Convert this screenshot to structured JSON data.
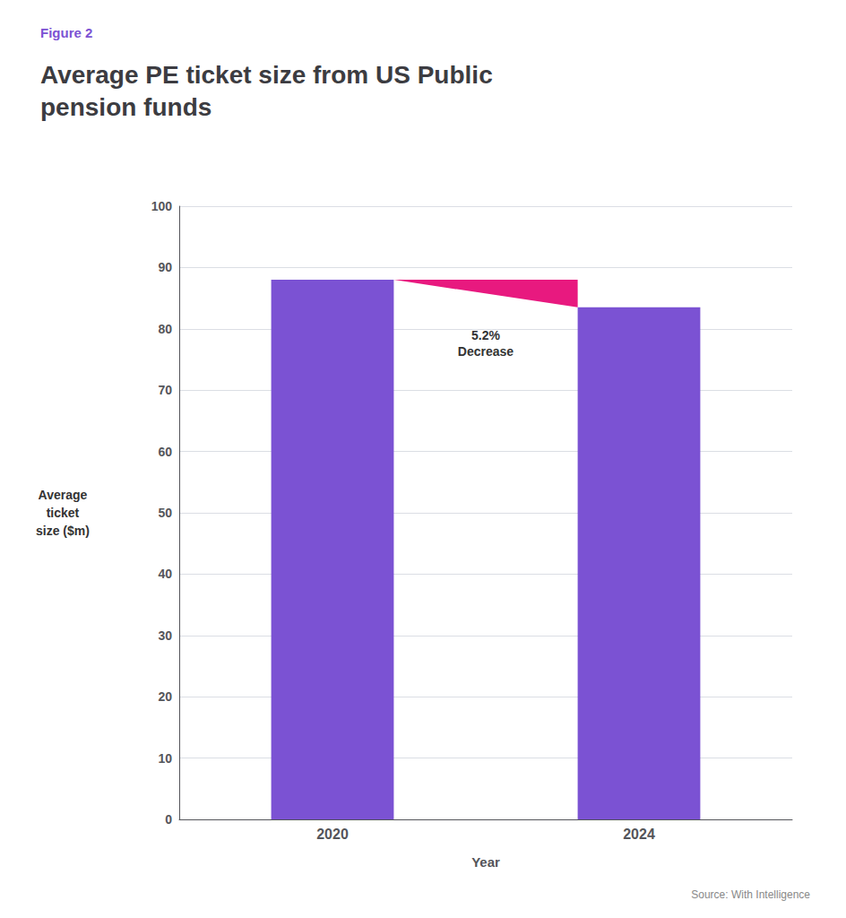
{
  "chart_data": {
    "type": "bar",
    "subtitle": "Figure 2",
    "title": "Average PE ticket size from US Public\npension funds",
    "categories": [
      "2020",
      "2024"
    ],
    "values": [
      88,
      83.5
    ],
    "color": "#7B52D3",
    "xlabel": "Year",
    "ylabel": "Average\nticket\nsize ($m)",
    "ylim": [
      0,
      100
    ],
    "yticks": [
      0,
      10,
      20,
      30,
      40,
      50,
      60,
      70,
      80,
      90,
      100
    ],
    "grid": true,
    "annotations": [
      {
        "text": "5.2%\nDecrease",
        "color": "#E8197F"
      }
    ],
    "source": "Source: With Intelligence"
  }
}
